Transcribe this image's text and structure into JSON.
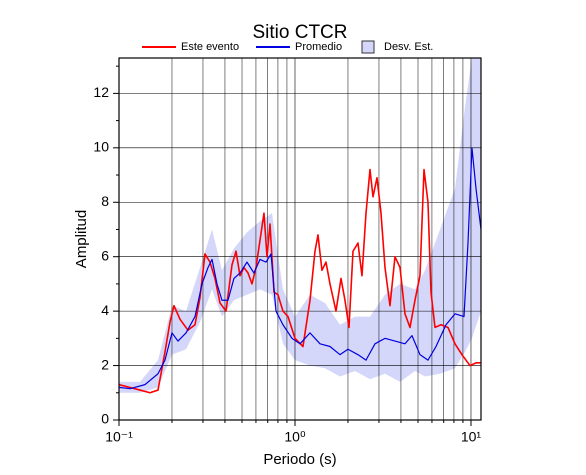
{
  "chart_data": {
    "type": "line",
    "title": "Sitio CTCR",
    "x_label": "Periodo (s)",
    "y_label": "Amplitud",
    "xscale": "log",
    "grid": true,
    "legend": "top",
    "xlim": [
      0.1,
      11.4
    ],
    "ylim": [
      0,
      13.3
    ],
    "xticks": [
      {
        "value": 0.1,
        "label": "10⁻¹"
      },
      {
        "value": 1,
        "label": "10⁰"
      },
      {
        "value": 10,
        "label": "10¹"
      }
    ],
    "xminor": [
      0.2,
      0.3,
      0.4,
      0.5,
      0.6,
      0.7,
      0.8,
      0.9,
      2,
      3,
      4,
      5,
      6,
      7,
      8,
      9
    ],
    "yticks": [
      0,
      2,
      4,
      6,
      8,
      10,
      12
    ],
    "yminor": [
      1,
      3,
      5,
      7,
      9,
      11,
      13
    ],
    "band": {
      "name": "Desv. Est.",
      "color": "#d4d7f9",
      "edge": "#333333",
      "x": [
        0.1,
        0.1316,
        0.1666,
        0.2,
        0.2403,
        0.2886,
        0.3377,
        0.3847,
        0.4499,
        0.5337,
        0.6325,
        0.7403,
        0.8546,
        1.0,
        1.217,
        1.481,
        1.802,
        2.193,
        2.668,
        3.247,
        3.951,
        4.806,
        5.479,
        6.667,
        8.111,
        9.245,
        10.13,
        11.4
      ],
      "lower": [
        1.0,
        1.0,
        1.2,
        2.4,
        2.6,
        3.6,
        4.8,
        3.8,
        4.4,
        4.6,
        4.8,
        4.6,
        2.8,
        2.2,
        2.0,
        1.9,
        1.6,
        1.8,
        1.5,
        1.7,
        1.4,
        1.8,
        1.6,
        1.7,
        1.9,
        2.5,
        3.0,
        4.0
      ],
      "upper": [
        1.4,
        1.4,
        2.2,
        4.2,
        4.0,
        5.6,
        7.0,
        5.5,
        6.3,
        6.9,
        7.3,
        7.6,
        4.8,
        3.8,
        4.6,
        4.3,
        3.5,
        3.8,
        3.8,
        4.6,
        5.0,
        4.8,
        5.5,
        7.0,
        8.5,
        11.5,
        13.3,
        13.3
      ]
    },
    "series": [
      {
        "name": "Este evento",
        "color": "#ff0000",
        "x": [
          0.1,
          0.1316,
          0.15,
          0.1666,
          0.1825,
          0.195,
          0.2053,
          0.2222,
          0.2466,
          0.2703,
          0.2886,
          0.308,
          0.3289,
          0.3511,
          0.3748,
          0.4055,
          0.4386,
          0.4622,
          0.487,
          0.5131,
          0.5408,
          0.5697,
          0.6003,
          0.6325,
          0.6665,
          0.6933,
          0.7211,
          0.76,
          0.8006,
          0.8546,
          0.9126,
          1.0,
          1.11,
          1.217,
          1.299,
          1.351,
          1.423,
          1.5,
          1.581,
          1.71,
          1.826,
          1.923,
          2.027,
          2.136,
          2.28,
          2.402,
          2.532,
          2.668,
          2.775,
          2.924,
          3.081,
          3.247,
          3.465,
          3.7,
          3.951,
          4.217,
          4.502,
          4.806,
          5.131,
          5.408,
          5.697,
          5.925,
          6.245,
          6.754,
          7.401,
          8.111,
          8.89,
          9.87,
          10.68,
          11.4
        ],
        "values": [
          1.3,
          1.1,
          1.0,
          1.1,
          2.5,
          3.6,
          4.2,
          3.7,
          3.3,
          3.5,
          4.5,
          6.1,
          5.8,
          5.2,
          4.3,
          4.0,
          5.7,
          6.2,
          5.3,
          5.6,
          5.4,
          5.0,
          5.6,
          6.6,
          7.6,
          6.0,
          7.2,
          4.7,
          4.6,
          4.0,
          3.8,
          3.0,
          2.7,
          4.4,
          6.2,
          6.8,
          5.5,
          5.8,
          5.0,
          4.0,
          5.2,
          4.4,
          3.4,
          6.2,
          6.5,
          5.3,
          7.6,
          9.2,
          8.2,
          8.9,
          7.6,
          5.6,
          4.2,
          6.0,
          5.6,
          3.9,
          3.4,
          4.4,
          5.3,
          9.2,
          8.0,
          4.7,
          3.4,
          3.5,
          3.4,
          2.8,
          2.4,
          2.0,
          2.1,
          2.1
        ]
      },
      {
        "name": "Promedio",
        "color": "#0000e0",
        "x": [
          0.1,
          0.1155,
          0.1405,
          0.1666,
          0.1825,
          0.2,
          0.2163,
          0.2403,
          0.2703,
          0.2962,
          0.3204,
          0.3377,
          0.3604,
          0.3847,
          0.4163,
          0.4499,
          0.487,
          0.5337,
          0.5848,
          0.6325,
          0.6842,
          0.7306,
          0.7798,
          0.8546,
          0.9616,
          1.068,
          1.217,
          1.387,
          1.581,
          1.802,
          2.0,
          2.28,
          2.532,
          2.848,
          3.247,
          3.7,
          4.217,
          4.621,
          5.131,
          5.697,
          6.327,
          7.211,
          8.111,
          9.126,
          9.616,
          10.13,
          10.68,
          11.4
        ],
        "values": [
          1.2,
          1.15,
          1.3,
          1.7,
          2.2,
          3.2,
          2.9,
          3.2,
          3.8,
          5.0,
          5.6,
          5.9,
          5.0,
          4.4,
          4.4,
          5.2,
          5.4,
          5.8,
          5.4,
          5.9,
          5.8,
          6.1,
          4.0,
          3.5,
          3.0,
          2.8,
          3.2,
          2.8,
          2.7,
          2.4,
          2.6,
          2.4,
          2.2,
          2.8,
          3.0,
          2.9,
          2.8,
          3.1,
          2.4,
          2.2,
          2.7,
          3.5,
          3.9,
          3.8,
          6.5,
          10.0,
          8.5,
          7.0
        ]
      }
    ]
  }
}
